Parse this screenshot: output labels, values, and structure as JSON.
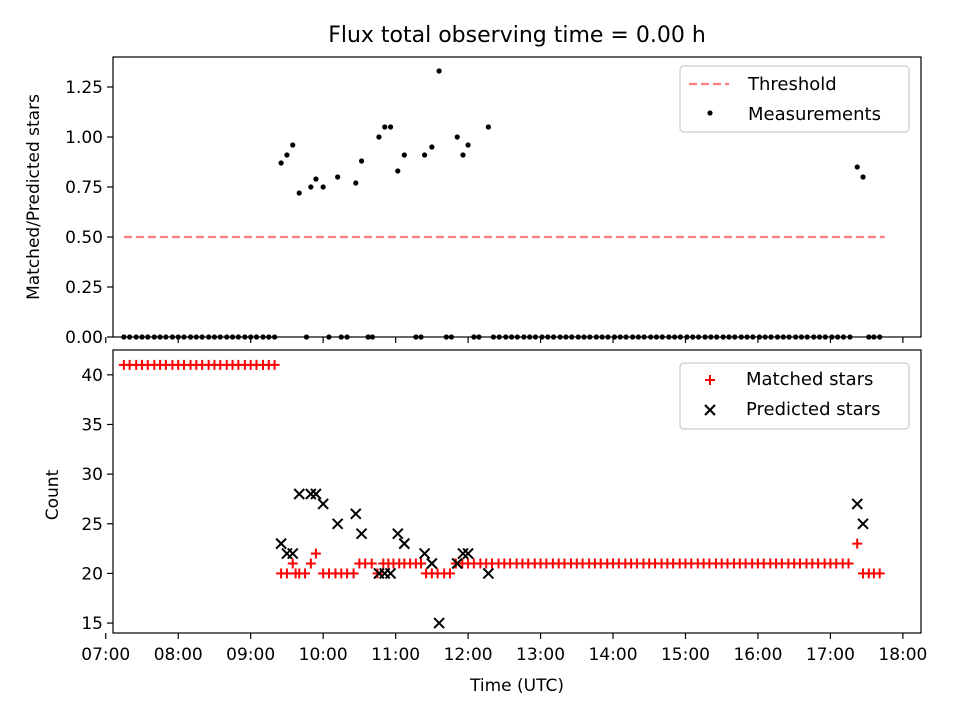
{
  "title": "Flux total observing time = 0.00 h",
  "colors": {
    "threshold": "#ff7f7f",
    "measurements": "#000000",
    "matched": "#ff0000",
    "predicted": "#000000"
  },
  "chart_data": [
    {
      "type": "scatter",
      "title": "Flux total observing time = 0.00 h",
      "xlabel": "",
      "ylabel": "Matched/Predicted stars",
      "xlim": [
        7.1,
        18.25
      ],
      "ylim": [
        0.0,
        1.4
      ],
      "yticks": [
        "0.00",
        "0.25",
        "0.50",
        "0.75",
        "1.00",
        "1.25"
      ],
      "legend": "top-right",
      "series": [
        {
          "name": "Threshold",
          "style": "dashed-line",
          "x": [
            7.25,
            17.75
          ],
          "y": [
            0.5,
            0.5
          ]
        },
        {
          "name": "Measurements",
          "style": "dot",
          "x": [
            9.42,
            9.5,
            9.58,
            9.67,
            9.83,
            9.9,
            10.0,
            10.2,
            10.45,
            10.53,
            10.77,
            10.85,
            10.93,
            11.03,
            11.12,
            11.4,
            11.5,
            11.6,
            11.85,
            11.93,
            12.0,
            12.28,
            17.37,
            17.45
          ],
          "y": [
            0.87,
            0.91,
            0.96,
            0.72,
            0.75,
            0.79,
            0.75,
            0.8,
            0.77,
            0.88,
            1.0,
            1.05,
            1.05,
            0.83,
            0.91,
            0.91,
            0.95,
            1.33,
            1.0,
            0.91,
            0.96,
            1.05,
            0.85,
            0.8
          ],
          "zeros": {
            "y": 0.0,
            "x": [
              7.25,
              7.33,
              7.42,
              7.5,
              7.58,
              7.67,
              7.75,
              7.83,
              7.92,
              8.0,
              8.08,
              8.17,
              8.25,
              8.33,
              8.42,
              8.5,
              8.58,
              8.67,
              8.75,
              8.83,
              8.92,
              9.0,
              9.08,
              9.17,
              9.25,
              9.33,
              9.77,
              10.08,
              10.25,
              10.33,
              10.62,
              10.68,
              11.28,
              11.35,
              11.7,
              11.77,
              12.08,
              12.15,
              12.35,
              12.43,
              12.52,
              12.6,
              12.68,
              12.77,
              12.85,
              12.93,
              13.02,
              13.1,
              13.18,
              13.27,
              13.35,
              13.43,
              13.52,
              13.6,
              13.68,
              13.77,
              13.85,
              13.93,
              14.02,
              14.1,
              14.18,
              14.27,
              14.35,
              14.43,
              14.52,
              14.6,
              14.68,
              14.77,
              14.85,
              14.93,
              15.02,
              15.1,
              15.18,
              15.27,
              15.35,
              15.43,
              15.52,
              15.6,
              15.68,
              15.77,
              15.85,
              15.93,
              16.02,
              16.1,
              16.18,
              16.27,
              16.35,
              16.43,
              16.52,
              16.6,
              16.68,
              16.77,
              16.85,
              16.93,
              17.02,
              17.1,
              17.18,
              17.27,
              17.53,
              17.6,
              17.68
            ]
          }
        }
      ]
    },
    {
      "type": "scatter",
      "title": "",
      "xlabel": "Time (UTC)",
      "ylabel": "Count",
      "xlim": [
        7.1,
        18.25
      ],
      "ylim": [
        14.0,
        42.5
      ],
      "yticks": [
        "15",
        "20",
        "25",
        "30",
        "35",
        "40"
      ],
      "xticks": [
        "07:00",
        "08:00",
        "09:00",
        "10:00",
        "11:00",
        "12:00",
        "13:00",
        "14:00",
        "15:00",
        "16:00",
        "17:00",
        "18:00"
      ],
      "legend": "top-right",
      "series": [
        {
          "name": "Matched stars",
          "marker": "+",
          "x": [
            7.25,
            7.33,
            7.42,
            7.5,
            7.58,
            7.67,
            7.75,
            7.83,
            7.92,
            8.0,
            8.08,
            8.17,
            8.25,
            8.33,
            8.42,
            8.5,
            8.58,
            8.67,
            8.75,
            8.83,
            8.92,
            9.0,
            9.08,
            9.17,
            9.25,
            9.33,
            9.42,
            9.5,
            9.58,
            9.62,
            9.67,
            9.75,
            9.83,
            9.9,
            10.0,
            10.08,
            10.17,
            10.25,
            10.33,
            10.42,
            10.5,
            10.58,
            10.67,
            10.75,
            10.83,
            10.9,
            10.97,
            11.05,
            11.12,
            11.2,
            11.28,
            11.35,
            11.42,
            11.5,
            11.58,
            11.67,
            11.75,
            11.83,
            11.92,
            12.0,
            12.08,
            12.17,
            12.25,
            12.33,
            12.42,
            12.5,
            12.58,
            12.67,
            12.75,
            12.83,
            12.92,
            13.0,
            13.08,
            13.17,
            13.25,
            13.33,
            13.42,
            13.5,
            13.58,
            13.67,
            13.75,
            13.83,
            13.92,
            14.0,
            14.08,
            14.17,
            14.25,
            14.33,
            14.42,
            14.5,
            14.58,
            14.67,
            14.75,
            14.83,
            14.92,
            15.0,
            15.08,
            15.17,
            15.25,
            15.33,
            15.42,
            15.5,
            15.58,
            15.67,
            15.75,
            15.83,
            15.92,
            16.0,
            16.08,
            16.17,
            16.25,
            16.33,
            16.42,
            16.5,
            16.58,
            16.67,
            16.75,
            16.83,
            16.92,
            17.0,
            17.08,
            17.17,
            17.25,
            17.37,
            17.45,
            17.53,
            17.6,
            17.68
          ],
          "y": [
            41,
            41,
            41,
            41,
            41,
            41,
            41,
            41,
            41,
            41,
            41,
            41,
            41,
            41,
            41,
            41,
            41,
            41,
            41,
            41,
            41,
            41,
            41,
            41,
            41,
            41,
            20,
            20,
            21,
            20,
            20,
            20,
            21,
            22,
            20,
            20,
            20,
            20,
            20,
            20,
            21,
            21,
            21,
            20,
            21,
            21,
            21,
            21,
            21,
            21,
            21,
            21,
            20,
            20,
            20,
            20,
            20,
            21,
            21,
            21,
            21,
            21,
            21,
            21,
            21,
            21,
            21,
            21,
            21,
            21,
            21,
            21,
            21,
            21,
            21,
            21,
            21,
            21,
            21,
            21,
            21,
            21,
            21,
            21,
            21,
            21,
            21,
            21,
            21,
            21,
            21,
            21,
            21,
            21,
            21,
            21,
            21,
            21,
            21,
            21,
            21,
            21,
            21,
            21,
            21,
            21,
            21,
            21,
            21,
            21,
            21,
            21,
            21,
            21,
            21,
            21,
            21,
            21,
            21,
            21,
            21,
            21,
            21,
            23,
            20,
            20,
            20,
            20
          ]
        },
        {
          "name": "Predicted stars",
          "marker": "x",
          "x": [
            9.42,
            9.5,
            9.58,
            9.67,
            9.83,
            9.9,
            10.0,
            10.2,
            10.45,
            10.53,
            10.77,
            10.85,
            10.93,
            11.03,
            11.12,
            11.4,
            11.5,
            11.6,
            11.85,
            11.93,
            12.0,
            12.28,
            17.37,
            17.45
          ],
          "y": [
            23,
            22,
            22,
            28,
            28,
            28,
            27,
            25,
            26,
            24,
            20,
            20,
            20,
            24,
            23,
            22,
            21,
            15,
            21,
            22,
            22,
            20,
            27,
            25
          ]
        }
      ]
    }
  ]
}
